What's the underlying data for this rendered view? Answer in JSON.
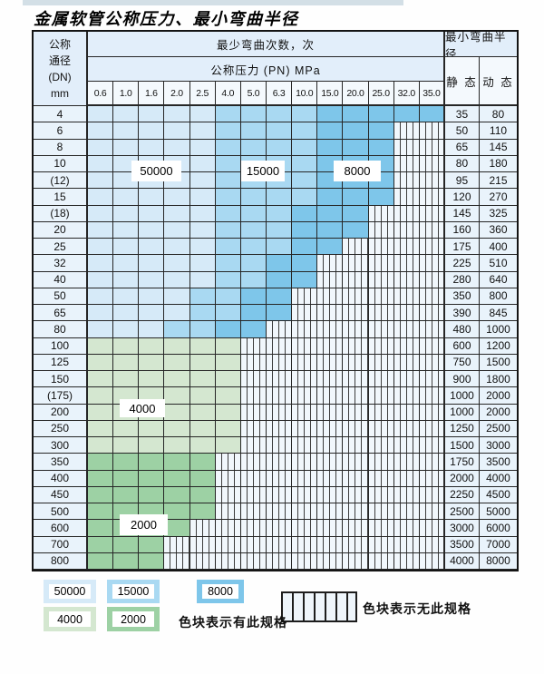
{
  "title": "金属软管公称压力、最小弯曲半径",
  "table": {
    "dn_header_lines": [
      "公称",
      "通径",
      "(DN)",
      "mm"
    ],
    "bend_cycles_header": "最少弯曲次数，次",
    "pressure_header": "公称压力 (PN) MPa",
    "radius_header": "最小弯曲半径",
    "static_header": "静 态",
    "dynamic_header": "动 态",
    "pressures": [
      "0.6",
      "1.0",
      "1.6",
      "2.0",
      "2.5",
      "4.0",
      "5.0",
      "6.3",
      "10.0",
      "15.0",
      "20.0",
      "25.0",
      "32.0",
      "35.0"
    ],
    "rows": [
      {
        "dn": "4",
        "static": "35",
        "dynamic": "80",
        "band": "blue",
        "colored": 14,
        "m": 6,
        "k": 10
      },
      {
        "dn": "6",
        "static": "50",
        "dynamic": "110",
        "band": "blue",
        "colored": 12,
        "m": 6,
        "k": 10
      },
      {
        "dn": "8",
        "static": "65",
        "dynamic": "145",
        "band": "blue",
        "colored": 12,
        "m": 6,
        "k": 10
      },
      {
        "dn": "10",
        "static": "80",
        "dynamic": "180",
        "band": "blue",
        "colored": 12,
        "m": 6,
        "k": 10
      },
      {
        "dn": "(12)",
        "static": "95",
        "dynamic": "215",
        "band": "blue",
        "colored": 12,
        "m": 6,
        "k": 10
      },
      {
        "dn": "15",
        "static": "120",
        "dynamic": "270",
        "band": "blue",
        "colored": 12,
        "m": 6,
        "k": 10
      },
      {
        "dn": "(18)",
        "static": "145",
        "dynamic": "325",
        "band": "blue",
        "colored": 11,
        "m": 6,
        "k": 9
      },
      {
        "dn": "20",
        "static": "160",
        "dynamic": "360",
        "band": "blue",
        "colored": 11,
        "m": 6,
        "k": 9
      },
      {
        "dn": "25",
        "static": "175",
        "dynamic": "400",
        "band": "blue",
        "colored": 10,
        "m": 6,
        "k": 9
      },
      {
        "dn": "32",
        "static": "225",
        "dynamic": "510",
        "band": "blue",
        "colored": 9,
        "m": 6,
        "k": 8
      },
      {
        "dn": "40",
        "static": "280",
        "dynamic": "640",
        "band": "blue",
        "colored": 9,
        "m": 6,
        "k": 8
      },
      {
        "dn": "50",
        "static": "350",
        "dynamic": "800",
        "band": "blue",
        "colored": 8,
        "m": 5,
        "k": 7
      },
      {
        "dn": "65",
        "static": "390",
        "dynamic": "845",
        "band": "blue",
        "colored": 8,
        "m": 5,
        "k": 7
      },
      {
        "dn": "80",
        "static": "480",
        "dynamic": "1000",
        "band": "blue",
        "colored": 7,
        "m": 4,
        "k": 6
      },
      {
        "dn": "100",
        "static": "600",
        "dynamic": "1200",
        "band": "green4000",
        "colored": 6
      },
      {
        "dn": "125",
        "static": "750",
        "dynamic": "1500",
        "band": "green4000",
        "colored": 6
      },
      {
        "dn": "150",
        "static": "900",
        "dynamic": "1800",
        "band": "green4000",
        "colored": 6
      },
      {
        "dn": "(175)",
        "static": "1000",
        "dynamic": "2000",
        "band": "green4000",
        "colored": 6
      },
      {
        "dn": "200",
        "static": "1000",
        "dynamic": "2000",
        "band": "green4000",
        "colored": 6
      },
      {
        "dn": "250",
        "static": "1250",
        "dynamic": "2500",
        "band": "green4000",
        "colored": 6
      },
      {
        "dn": "300",
        "static": "1500",
        "dynamic": "3000",
        "band": "green4000",
        "colored": 6
      },
      {
        "dn": "350",
        "static": "1750",
        "dynamic": "3500",
        "band": "green2000",
        "colored": 5
      },
      {
        "dn": "400",
        "static": "2000",
        "dynamic": "4000",
        "band": "green2000",
        "colored": 5
      },
      {
        "dn": "450",
        "static": "2250",
        "dynamic": "4500",
        "band": "green2000",
        "colored": 5
      },
      {
        "dn": "500",
        "static": "2500",
        "dynamic": "5000",
        "band": "green2000",
        "colored": 5
      },
      {
        "dn": "600",
        "static": "3000",
        "dynamic": "6000",
        "band": "green2000",
        "colored": 4
      },
      {
        "dn": "700",
        "static": "3500",
        "dynamic": "7000",
        "band": "green2000",
        "colored": 3
      },
      {
        "dn": "800",
        "static": "4000",
        "dynamic": "8000",
        "band": "green2000",
        "colored": 3
      }
    ]
  },
  "overlays": [
    {
      "label": "50000"
    },
    {
      "label": "15000"
    },
    {
      "label": "8000"
    },
    {
      "label": "4000"
    },
    {
      "label": "2000"
    }
  ],
  "legend": {
    "items": [
      {
        "label": "50000",
        "color": "#d6eaf8"
      },
      {
        "label": "15000",
        "color": "#a9d9f2"
      },
      {
        "label": "8000",
        "color": "#7ec6ea"
      },
      {
        "label": "4000",
        "color": "#d4e7d0"
      },
      {
        "label": "2000",
        "color": "#9dd1a4"
      }
    ],
    "has_spec_text": "色块表示有此规格",
    "no_spec_text": "色块表示无此规格"
  },
  "colors": {
    "blue_light": "#d6eaf8",
    "blue_mid": "#a9d9f2",
    "blue_dark": "#7ec6ea",
    "green_light": "#d4e7d0",
    "green_mid": "#9dd1a4",
    "header_bg": "#e2eefa",
    "subheader_bg": "#f4f9fd",
    "label_col_bg": "#e9f3fb"
  }
}
